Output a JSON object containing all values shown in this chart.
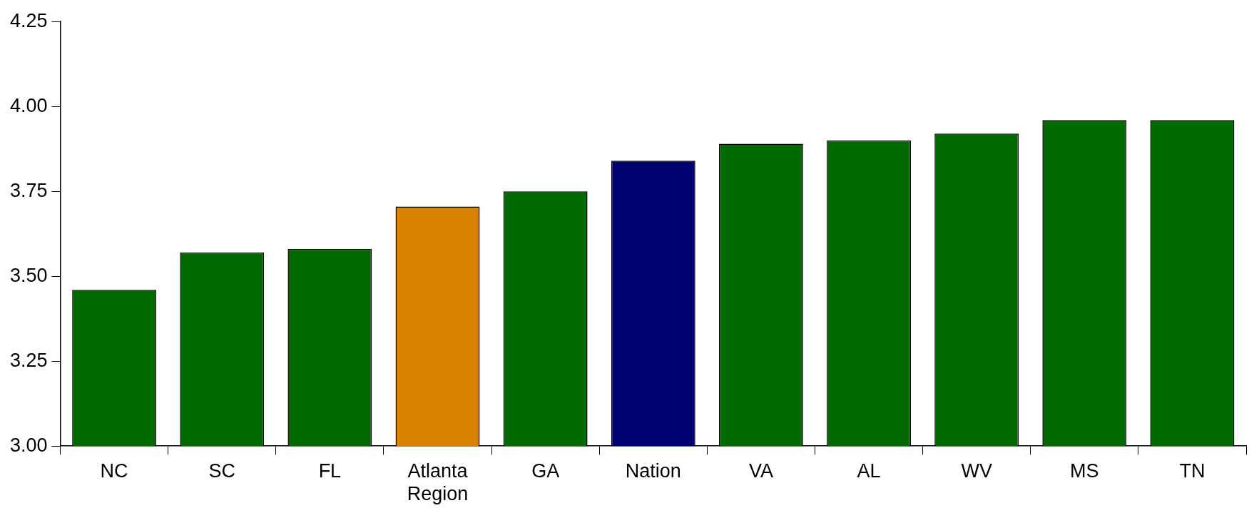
{
  "chart_data": {
    "type": "bar",
    "categories": [
      "NC",
      "SC",
      "FL",
      "Atlanta Region",
      "GA",
      "Nation",
      "VA",
      "AL",
      "WV",
      "MS",
      "TN"
    ],
    "values": [
      3.46,
      3.57,
      3.58,
      3.705,
      3.75,
      3.84,
      3.89,
      3.9,
      3.92,
      3.96,
      3.96
    ],
    "colors": [
      "#006a00",
      "#006a00",
      "#006a00",
      "#d98200",
      "#006a00",
      "#000070",
      "#006a00",
      "#006a00",
      "#006a00",
      "#006a00",
      "#006a00"
    ],
    "ylim": [
      3,
      4.25
    ],
    "yticks": [
      {
        "value": 3,
        "label": "3.00"
      },
      {
        "value": 3.25,
        "label": "3.25"
      },
      {
        "value": 3.5,
        "label": "3.50"
      },
      {
        "value": 3.75,
        "label": "3.75"
      },
      {
        "value": 4,
        "label": "4.00"
      },
      {
        "value": 4.25,
        "label": "4.25"
      }
    ],
    "grid": false,
    "legend": false
  }
}
